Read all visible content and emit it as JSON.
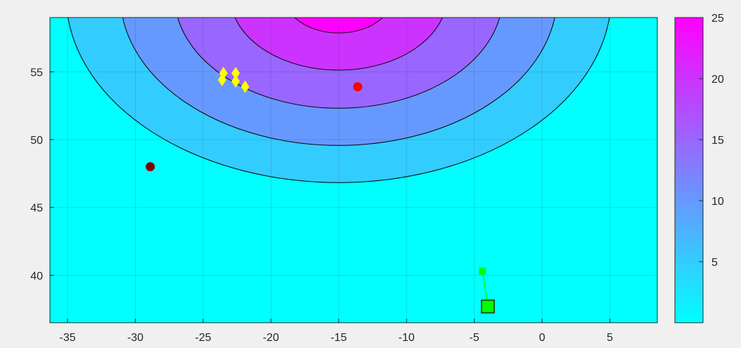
{
  "chart_data": {
    "type": "contour",
    "xlim": [
      -36.3,
      8.5
    ],
    "ylim": [
      36.5,
      59
    ],
    "x_ticks": [
      -35,
      -30,
      -25,
      -20,
      -15,
      -10,
      -5,
      0,
      5
    ],
    "y_ticks": [
      40,
      45,
      50,
      55
    ],
    "grid": true,
    "field": {
      "center": [
        -15,
        60.6
      ],
      "x_scale": 1.0,
      "y_scale": 1.46,
      "peak": 25,
      "contour_levels": [
        5,
        10,
        15,
        20,
        25
      ],
      "level_radius": {
        "5": 20.1,
        "10": 16.1,
        "15": 12.1,
        "20": 8.0,
        "25": 4.0
      }
    },
    "colorbar": {
      "ticks": [
        5,
        10,
        15,
        20,
        25
      ],
      "range": [
        0,
        25
      ],
      "color_low": "#00ffff",
      "color_high": "#ff00ff"
    },
    "markers": {
      "yellow_diamonds": {
        "color": "#ffff00",
        "points": [
          [
            -23.5,
            54.9
          ],
          [
            -23.6,
            54.4
          ],
          [
            -22.6,
            54.9
          ],
          [
            -22.6,
            54.3
          ],
          [
            -21.9,
            53.9
          ]
        ]
      },
      "red_dot": {
        "color": "#ff0000",
        "point": [
          -13.6,
          53.9
        ]
      },
      "dark_red_dot": {
        "color": "#800000",
        "point": [
          -28.9,
          48.0
        ]
      },
      "green_track": {
        "color": "#00ff00",
        "start": [
          -4.4,
          40.3
        ],
        "end": [
          -4.0,
          37.7
        ]
      }
    }
  }
}
